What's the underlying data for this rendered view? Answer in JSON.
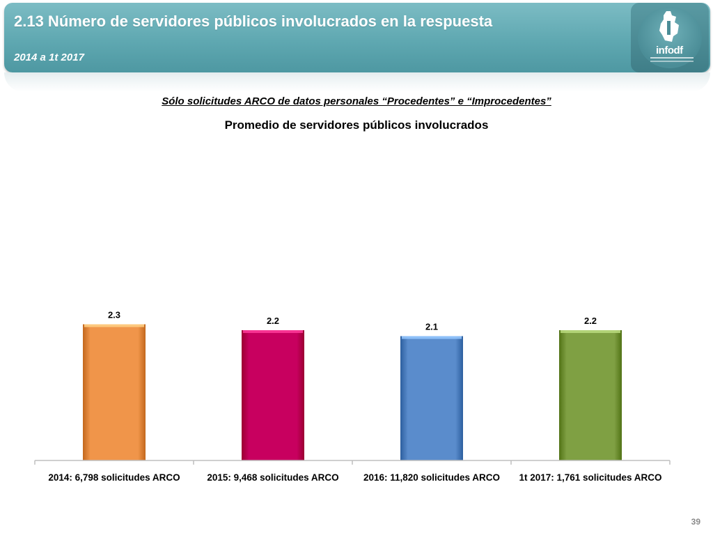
{
  "header": {
    "title": "2.13 Número de servidores públicos involucrados en la respuesta",
    "subtitle": "2014 a 1t 2017",
    "logo_text": "infodf",
    "accent_color": "#5fa8b1"
  },
  "note": "Sólo solicitudes ARCO de datos personales “Procedentes” e “Improcedentes”",
  "page_number": "39",
  "chart_data": {
    "type": "bar",
    "title": "Promedio de servidores públicos involucrados",
    "categories": [
      "2014: 6,798 solicitudes ARCO",
      "2015: 9,468 solicitudes ARCO",
      "2016: 11,820 solicitudes ARCO",
      "1t 2017: 1,761 solicitudes ARCO"
    ],
    "values": [
      2.3,
      2.2,
      2.1,
      2.2
    ],
    "value_labels": [
      "2.3",
      "2.2",
      "2.1",
      "2.2"
    ],
    "colors": [
      "#f0954a",
      "#c8005f",
      "#5a8ccc",
      "#7fa043"
    ],
    "xlabel": "",
    "ylabel": "",
    "ylim": [
      0,
      10
    ],
    "grid": false,
    "legend": "none"
  }
}
